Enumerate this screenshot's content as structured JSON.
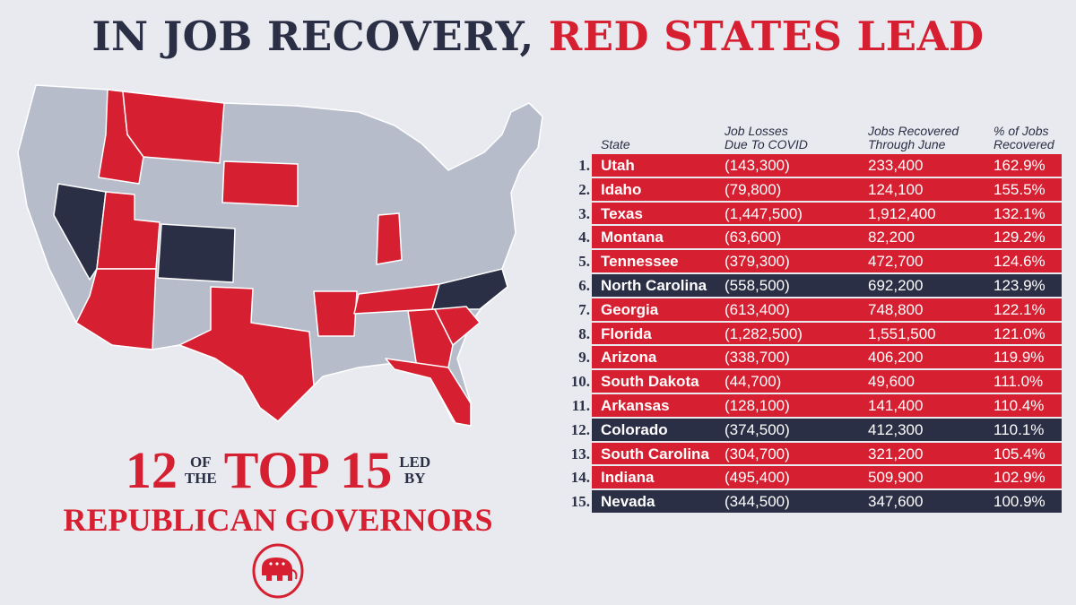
{
  "title": {
    "part1": "IN JOB RECOVERY, ",
    "part2": "RED STATES LEAD"
  },
  "tagline": {
    "num1": "12",
    "of": "OF",
    "the": "THE",
    "top": "TOP 15",
    "led": "LED",
    "by": "BY",
    "line2": "REPUBLICAN GOVERNORS"
  },
  "colors": {
    "red": "#d61f30",
    "navy": "#2a2f45",
    "gray": "#b7bccb",
    "background": "#e9eaef"
  },
  "chart_data": {
    "type": "table",
    "columns": [
      "State",
      "Job Losses Due To COVID",
      "Jobs Recovered Through June",
      "% of Jobs Recovered"
    ],
    "header": {
      "state": "State",
      "loss_1": "Job Losses",
      "loss_2": "Due To COVID",
      "rec_1": "Jobs Recovered",
      "rec_2": "Through June",
      "pct_1": "% of Jobs",
      "pct_2": "Recovered"
    },
    "rows": [
      {
        "rank": "1.",
        "state": "Utah",
        "losses": "(143,300)",
        "recovered": "233,400",
        "pct": "162.9%",
        "color": "#d61f30"
      },
      {
        "rank": "2.",
        "state": "Idaho",
        "losses": "(79,800)",
        "recovered": "124,100",
        "pct": "155.5%",
        "color": "#d61f30"
      },
      {
        "rank": "3.",
        "state": "Texas",
        "losses": "(1,447,500)",
        "recovered": "1,912,400",
        "pct": "132.1%",
        "color": "#d61f30"
      },
      {
        "rank": "4.",
        "state": "Montana",
        "losses": "(63,600)",
        "recovered": "82,200",
        "pct": "129.2%",
        "color": "#d61f30"
      },
      {
        "rank": "5.",
        "state": "Tennessee",
        "losses": "(379,300)",
        "recovered": "472,700",
        "pct": "124.6%",
        "color": "#d61f30"
      },
      {
        "rank": "6.",
        "state": "North Carolina",
        "losses": "(558,500)",
        "recovered": "692,200",
        "pct": "123.9%",
        "color": "#2a2f45"
      },
      {
        "rank": "7.",
        "state": "Georgia",
        "losses": "(613,400)",
        "recovered": "748,800",
        "pct": "122.1%",
        "color": "#d61f30"
      },
      {
        "rank": "8.",
        "state": "Florida",
        "losses": "(1,282,500)",
        "recovered": "1,551,500",
        "pct": "121.0%",
        "color": "#d61f30"
      },
      {
        "rank": "9.",
        "state": "Arizona",
        "losses": "(338,700)",
        "recovered": "406,200",
        "pct": "119.9%",
        "color": "#d61f30"
      },
      {
        "rank": "10.",
        "state": "South Dakota",
        "losses": "(44,700)",
        "recovered": "49,600",
        "pct": "111.0%",
        "color": "#d61f30"
      },
      {
        "rank": "11.",
        "state": "Arkansas",
        "losses": "(128,100)",
        "recovered": "141,400",
        "pct": "110.4%",
        "color": "#d61f30"
      },
      {
        "rank": "12.",
        "state": "Colorado",
        "losses": "(374,500)",
        "recovered": "412,300",
        "pct": "110.1%",
        "color": "#2a2f45"
      },
      {
        "rank": "13.",
        "state": "South Carolina",
        "losses": "(304,700)",
        "recovered": "321,200",
        "pct": "105.4%",
        "color": "#d61f30"
      },
      {
        "rank": "14.",
        "state": "Indiana",
        "losses": "(495,400)",
        "recovered": "509,900",
        "pct": "102.9%",
        "color": "#d61f30"
      },
      {
        "rank": "15.",
        "state": "Nevada",
        "losses": "(344,500)",
        "recovered": "347,600",
        "pct": "100.9%",
        "color": "#2a2f45"
      }
    ]
  },
  "logo": {
    "icon": "republican-elephant-icon"
  }
}
